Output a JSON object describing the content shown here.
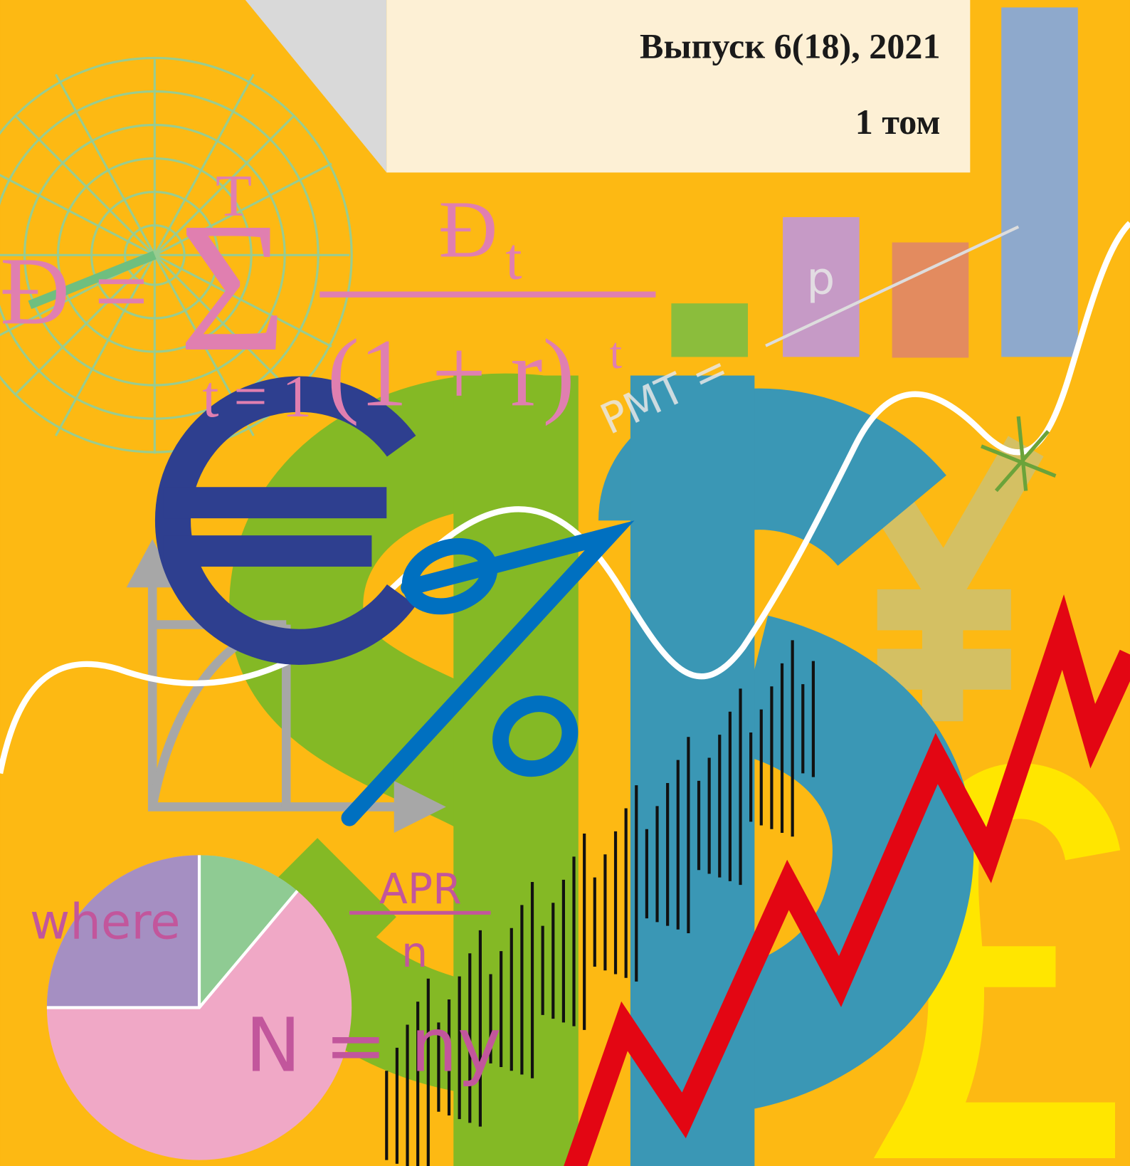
{
  "cover": {
    "issue": "Выпуск 6(18), 2021",
    "volume": "1 том"
  },
  "illustration": {
    "formula_left": "Đ = ",
    "sigma": "Σ",
    "sigma_top": "T",
    "sigma_bottom": "t = 1",
    "numerator": "Đ",
    "numerator_sub": "t",
    "denominator": "(1 + r)",
    "denominator_exp": "t",
    "where": "where",
    "apr": "APR",
    "apr_n": "n",
    "nny": "N = ny",
    "pmt": "PMT =",
    "p": "p"
  }
}
